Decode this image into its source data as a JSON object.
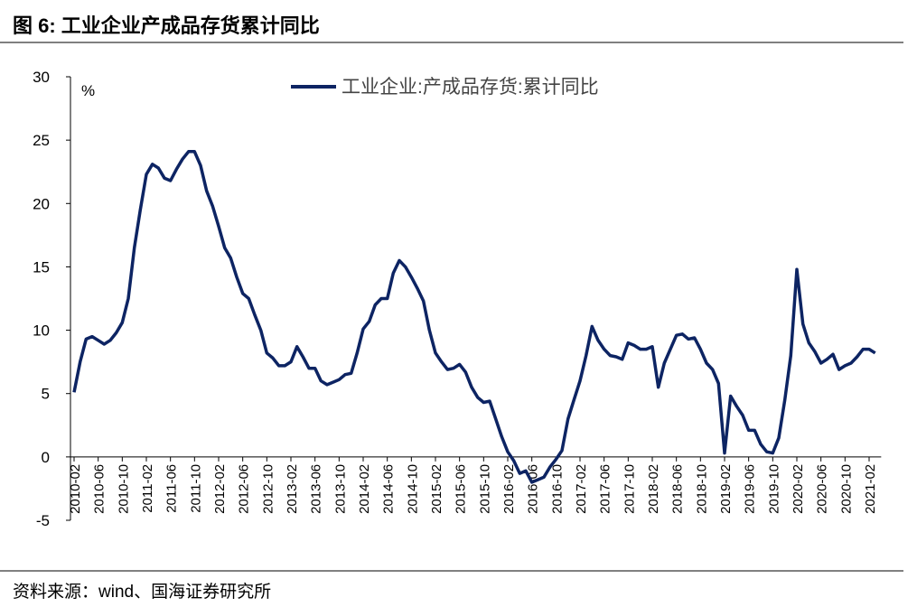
{
  "chart_data": {
    "type": "line",
    "title": "图 6:  工业企业产成品存货累计同比",
    "y_unit": "%",
    "source": "资料来源：wind、国海证券研究所",
    "categories": [
      "2010-02",
      null,
      null,
      null,
      "2010-06",
      null,
      null,
      null,
      "2010-10",
      null,
      null,
      null,
      "2011-02",
      null,
      null,
      null,
      "2011-06",
      null,
      null,
      null,
      "2011-10",
      null,
      null,
      null,
      "2012-02",
      null,
      null,
      null,
      "2012-06",
      null,
      null,
      null,
      "2012-10",
      null,
      null,
      null,
      "2013-02",
      null,
      null,
      null,
      "2013-06",
      null,
      null,
      null,
      "2013-10",
      null,
      null,
      null,
      "2014-02",
      null,
      null,
      null,
      "2014-06",
      null,
      null,
      null,
      "2014-10",
      null,
      null,
      null,
      "2015-02",
      null,
      null,
      null,
      "2015-06",
      null,
      null,
      null,
      "2015-10",
      null,
      null,
      null,
      "2016-02",
      null,
      null,
      null,
      "2016-06",
      null,
      null,
      null,
      "2016-10",
      null,
      null,
      null,
      "2017-02",
      null,
      null,
      null,
      "2017-06",
      null,
      null,
      null,
      "2017-10",
      null,
      null,
      null,
      "2018-02",
      null,
      null,
      null,
      "2018-06",
      null,
      null,
      null,
      "2018-10",
      null,
      null,
      null,
      "2019-02",
      null,
      null,
      null,
      "2019-06",
      null,
      null,
      null,
      "2019-10",
      null,
      null,
      null,
      "2020-02",
      null,
      null,
      null,
      "2020-06",
      null,
      null,
      null,
      "2020-10",
      null,
      null,
      null,
      "2021-02",
      null
    ],
    "series": [
      {
        "name": "工业企业:产成品存货:累计同比",
        "color": "#0d2463",
        "values": [
          5.1,
          7.5,
          9.3,
          9.5,
          9.2,
          8.9,
          9.2,
          9.8,
          10.6,
          12.5,
          16.5,
          19.5,
          22.3,
          23.1,
          22.8,
          22.0,
          21.8,
          22.7,
          23.5,
          24.1,
          24.1,
          23.0,
          21.0,
          19.8,
          18.2,
          16.5,
          15.7,
          14.2,
          12.9,
          12.5,
          11.2,
          10.0,
          8.2,
          7.8,
          7.2,
          7.2,
          7.5,
          8.7,
          7.9,
          7.0,
          7.0,
          6.0,
          5.7,
          5.9,
          6.1,
          6.5,
          6.6,
          8.2,
          10.1,
          10.7,
          12.0,
          12.5,
          12.5,
          14.5,
          15.5,
          15.0,
          14.2,
          13.3,
          12.3,
          10.0,
          8.2,
          7.5,
          6.9,
          7.0,
          7.3,
          6.7,
          5.5,
          4.7,
          4.3,
          4.4,
          3.0,
          1.6,
          0.4,
          -0.3,
          -1.3,
          -1.1,
          -2.0,
          -1.8,
          -1.6,
          -0.8,
          -0.2,
          0.5,
          3.0,
          4.5,
          6.0,
          8.0,
          10.3,
          9.2,
          8.5,
          8.0,
          7.9,
          7.7,
          9.0,
          8.8,
          8.5,
          8.5,
          8.7,
          5.5,
          7.4,
          8.5,
          9.6,
          9.7,
          9.3,
          9.4,
          8.5,
          7.4,
          6.9,
          5.8,
          0.3,
          4.8,
          4.0,
          3.3,
          2.1,
          2.1,
          1.0,
          0.4,
          0.3,
          1.5,
          4.5,
          8.0,
          14.8,
          10.5,
          9.0,
          8.3,
          7.4,
          7.7,
          8.1,
          6.9,
          7.2,
          7.4,
          7.9,
          8.5,
          8.5,
          8.2
        ]
      }
    ],
    "ylim": [
      -5,
      30
    ],
    "yticks": [
      -5,
      0,
      5,
      10,
      15,
      20,
      25,
      30
    ],
    "grid": false,
    "legend": "top"
  }
}
